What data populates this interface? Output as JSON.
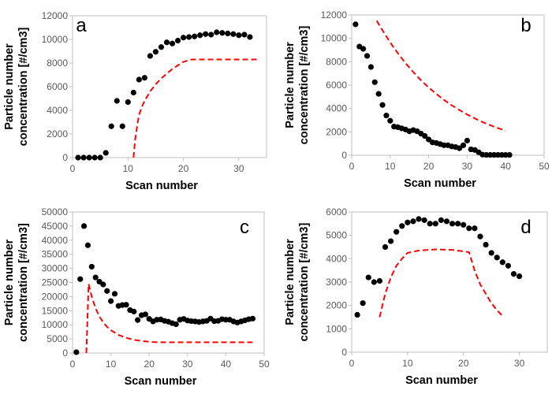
{
  "chart_data": [
    {
      "type": "scatter",
      "panel_label": "a",
      "xlabel": "Scan number",
      "ylabel": [
        "Particle number",
        "concentration [#/cm3]"
      ],
      "xlim": [
        0,
        35
      ],
      "ylim": [
        0,
        12000
      ],
      "xticks": [
        0,
        10,
        20,
        30
      ],
      "yticks": [
        0,
        2000,
        4000,
        6000,
        8000,
        10000,
        12000
      ],
      "grid": false,
      "points": {
        "x": [
          1,
          2,
          3,
          4,
          5,
          6,
          7,
          8,
          9,
          10,
          11,
          12,
          13,
          14,
          15,
          16,
          17,
          18,
          19,
          20,
          21,
          22,
          23,
          24,
          25,
          26,
          27,
          28,
          29,
          30,
          31,
          32
        ],
        "y": [
          0,
          0,
          0,
          0,
          0,
          400,
          2650,
          4800,
          2650,
          4700,
          5500,
          6600,
          6750,
          8600,
          8950,
          9350,
          9750,
          9650,
          9900,
          10150,
          10200,
          10250,
          10350,
          10450,
          10400,
          10600,
          10550,
          10500,
          10450,
          10350,
          10400,
          10200
        ]
      },
      "model_line": {
        "x": [
          11,
          11.3,
          11.7,
          12,
          12.5,
          13,
          14,
          15,
          16,
          17,
          18,
          19,
          20,
          21,
          21.5,
          33.5
        ],
        "y": [
          0,
          1500,
          2800,
          3600,
          4300,
          4800,
          5600,
          6200,
          6700,
          7100,
          7500,
          7800,
          8100,
          8250,
          8300,
          8300
        ]
      }
    },
    {
      "type": "scatter",
      "panel_label": "b",
      "xlabel": "Scan number",
      "ylabel": [
        "Particle number",
        "concentration [#/cm3]"
      ],
      "xlim": [
        0,
        50
      ],
      "ylim": [
        0,
        12000
      ],
      "xticks": [
        0,
        10,
        20,
        30,
        40,
        50
      ],
      "yticks": [
        0,
        2000,
        4000,
        6000,
        8000,
        10000,
        12000
      ],
      "grid": false,
      "points": {
        "x": [
          1,
          2,
          3,
          4,
          5,
          6,
          7,
          8,
          9,
          10,
          11,
          12,
          13,
          14,
          15,
          16,
          17,
          18,
          19,
          20,
          21,
          22,
          23,
          24,
          25,
          26,
          27,
          28,
          29,
          30,
          31,
          32,
          33,
          34,
          35,
          36,
          37,
          38,
          39,
          40,
          41
        ],
        "y": [
          11200,
          9300,
          9100,
          8500,
          7550,
          6250,
          5250,
          4300,
          3400,
          2950,
          2450,
          2400,
          2300,
          2200,
          2050,
          2150,
          2050,
          1850,
          1650,
          1350,
          1100,
          1050,
          950,
          850,
          850,
          750,
          700,
          600,
          850,
          1250,
          500,
          450,
          250,
          50,
          30,
          30,
          30,
          30,
          30,
          30,
          30
        ]
      },
      "model_line": {
        "x": [
          6.5,
          8,
          10,
          12,
          14,
          16,
          18,
          20,
          22,
          24,
          26,
          28,
          30,
          32,
          34,
          36,
          38,
          40
        ],
        "y": [
          11500,
          10690,
          9650,
          8720,
          7880,
          7110,
          6420,
          5800,
          5240,
          4730,
          4270,
          3860,
          3490,
          3150,
          2840,
          2570,
          2320,
          2100
        ]
      }
    },
    {
      "type": "scatter",
      "panel_label": "c",
      "xlabel": "Scan number",
      "ylabel": [
        "Particle number",
        "concentration [#/cm3]"
      ],
      "xlim": [
        0,
        50
      ],
      "ylim": [
        0,
        50000
      ],
      "xticks": [
        0,
        10,
        20,
        30,
        40,
        50
      ],
      "yticks": [
        0,
        5000,
        10000,
        15000,
        20000,
        25000,
        30000,
        35000,
        40000,
        45000,
        50000
      ],
      "grid": false,
      "points": {
        "x": [
          1,
          2,
          3,
          4,
          5,
          6,
          7,
          8,
          9,
          10,
          11,
          12,
          13,
          14,
          15,
          16,
          17,
          18,
          19,
          20,
          21,
          22,
          23,
          24,
          25,
          26,
          27,
          28,
          29,
          30,
          31,
          32,
          33,
          34,
          35,
          36,
          37,
          38,
          39,
          40,
          41,
          42,
          43,
          44,
          45,
          46,
          47
        ],
        "y": [
          300,
          26200,
          45000,
          38200,
          30600,
          26800,
          25300,
          24300,
          22000,
          18400,
          21000,
          16700,
          17000,
          17100,
          15200,
          14700,
          11700,
          13400,
          13700,
          12100,
          11200,
          11800,
          11900,
          11400,
          11100,
          10600,
          10200,
          11800,
          12100,
          11500,
          11300,
          11200,
          11000,
          11200,
          11400,
          12200,
          11300,
          11400,
          12000,
          11800,
          11800,
          11200,
          10800,
          11200,
          11600,
          12000,
          12200
        ]
      },
      "model_line": {
        "x": [
          3.6,
          4.2,
          5,
          6,
          7,
          8,
          9,
          10,
          12,
          14,
          16,
          18,
          20,
          22,
          30,
          40,
          47
        ],
        "y": [
          0,
          24500,
          20000,
          15900,
          13000,
          10900,
          9300,
          8100,
          6400,
          5400,
          4700,
          4300,
          4000,
          3800,
          3800,
          3800,
          3800
        ]
      }
    },
    {
      "type": "scatter",
      "panel_label": "d",
      "xlabel": "Scan number",
      "ylabel": [
        "Particle number",
        "concentration [#/cm3]"
      ],
      "xlim": [
        0,
        35
      ],
      "ylim": [
        0,
        6000
      ],
      "xticks": [
        0,
        10,
        20,
        30
      ],
      "yticks": [
        0,
        1000,
        2000,
        3000,
        4000,
        5000,
        6000
      ],
      "grid": false,
      "points": {
        "x": [
          1,
          2,
          3,
          4,
          5,
          6,
          7,
          8,
          9,
          10,
          11,
          12,
          13,
          14,
          15,
          16,
          17,
          18,
          19,
          20,
          21,
          22,
          23,
          24,
          25,
          26,
          27,
          28,
          29,
          30
        ],
        "y": [
          1600,
          2100,
          3200,
          3000,
          3050,
          4500,
          4750,
          5150,
          5400,
          5550,
          5600,
          5700,
          5650,
          5500,
          5500,
          5650,
          5600,
          5500,
          5500,
          5450,
          5300,
          5300,
          4950,
          4600,
          4250,
          4050,
          3850,
          3700,
          3350,
          3250
        ]
      },
      "model_line": {
        "x": [
          5,
          6,
          7,
          8,
          9,
          10,
          12,
          15,
          18,
          21,
          22,
          23,
          24,
          25,
          26,
          27.2
        ],
        "y": [
          1500,
          2500,
          3200,
          3700,
          4000,
          4250,
          4350,
          4400,
          4380,
          4280,
          3500,
          2900,
          2500,
          2100,
          1800,
          1500
        ]
      }
    }
  ],
  "colors": {
    "points": "#000000",
    "model_line": "#ff0000",
    "axis": "#bfbfbf"
  }
}
